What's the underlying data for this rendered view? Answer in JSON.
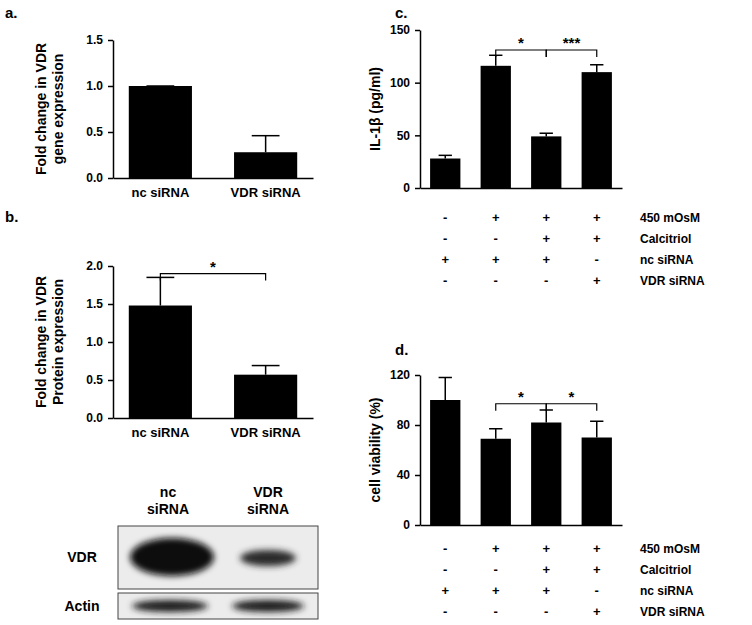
{
  "chart_data": [
    {
      "type": "bar",
      "title": "a.",
      "categories": [
        "nc siRNA",
        "VDR siRNA"
      ],
      "values": [
        1.0,
        0.28
      ],
      "errors": [
        0,
        0.18
      ],
      "color": "#000000",
      "ylabel": [
        "Fold change in VDR",
        "gene expression"
      ],
      "ylim": [
        0,
        1.5
      ],
      "yticks": [
        {
          "value": 0,
          "label": "0.0"
        },
        {
          "value": 0.5,
          "label": "0.5"
        },
        {
          "value": 1,
          "label": "1.0"
        },
        {
          "value": 1.5,
          "label": "1.5"
        }
      ]
    },
    {
      "type": "bar",
      "title": "b.",
      "categories": [
        "nc siRNA",
        "VDR siRNA"
      ],
      "values": [
        1.48,
        0.57
      ],
      "errors": [
        0.37,
        0.12
      ],
      "color": "#000000",
      "ylabel": [
        "Fold change in VDR",
        "Protein expression"
      ],
      "ylim": [
        0,
        2
      ],
      "yticks": [
        {
          "value": 0,
          "label": "0.0"
        },
        {
          "value": 0.5,
          "label": "0.5"
        },
        {
          "value": 1,
          "label": "1.0"
        },
        {
          "value": 1.5,
          "label": "1.5"
        },
        {
          "value": 2,
          "label": "2.0"
        }
      ],
      "annotations": [
        {
          "text": "*",
          "from": 0,
          "to": 1,
          "y": 1.9
        }
      ],
      "blot": {
        "lanes": [
          [
            "nc",
            "siRNA"
          ],
          [
            "VDR",
            "siRNA"
          ]
        ],
        "rows": [
          "VDR",
          "Actin"
        ]
      }
    },
    {
      "type": "bar",
      "title": "c.",
      "categories": [
        null,
        null,
        null,
        null
      ],
      "values": [
        28,
        116,
        49,
        110
      ],
      "errors": [
        3,
        10,
        3,
        7
      ],
      "color": "#000000",
      "ylabel": [
        "IL-1β (pg/ml)"
      ],
      "ylim": [
        0,
        150
      ],
      "yticks": [
        0,
        50,
        100,
        150
      ],
      "annotations": [
        {
          "text": "*",
          "from": 1,
          "to": 2,
          "y": 131
        },
        {
          "text": "***",
          "from": 2,
          "to": 3,
          "y": 131
        }
      ],
      "conditions": [
        {
          "label": "450 mOsM",
          "signs": [
            "-",
            "+",
            "+",
            "+"
          ]
        },
        {
          "label": "Calcitriol",
          "signs": [
            "-",
            "-",
            "+",
            "+"
          ]
        },
        {
          "label": "nc siRNA",
          "signs": [
            "+",
            "+",
            "+",
            "-"
          ]
        },
        {
          "label": "VDR siRNA",
          "signs": [
            "-",
            "-",
            "-",
            "+"
          ]
        }
      ]
    },
    {
      "type": "bar",
      "title": "d.",
      "categories": [
        null,
        null,
        null,
        null
      ],
      "values": [
        100,
        69,
        82,
        70
      ],
      "errors": [
        18,
        8,
        10,
        13
      ],
      "color": "#000000",
      "ylabel": [
        "cell viability (%)"
      ],
      "ylim": [
        0,
        120
      ],
      "yticks": [
        0,
        40,
        80,
        120
      ],
      "annotations": [
        {
          "text": "*",
          "from": 1,
          "to": 2,
          "y": 97
        },
        {
          "text": "*",
          "from": 2,
          "to": 3,
          "y": 97
        }
      ],
      "conditions": [
        {
          "label": "450 mOsM",
          "signs": [
            "-",
            "+",
            "+",
            "+"
          ]
        },
        {
          "label": "Calcitriol",
          "signs": [
            "-",
            "-",
            "+",
            "+"
          ]
        },
        {
          "label": "nc siRNA",
          "signs": [
            "+",
            "+",
            "+",
            "-"
          ]
        },
        {
          "label": "VDR siRNA",
          "signs": [
            "-",
            "-",
            "-",
            "+"
          ]
        }
      ]
    }
  ]
}
